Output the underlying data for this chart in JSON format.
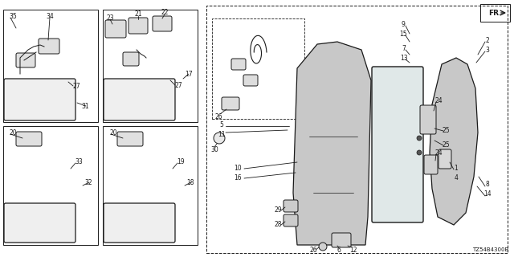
{
  "bg": "#ffffff",
  "lc": "#1a1a1a",
  "diagram_id": "TZ54B4300B",
  "fr_text": "FR."
}
